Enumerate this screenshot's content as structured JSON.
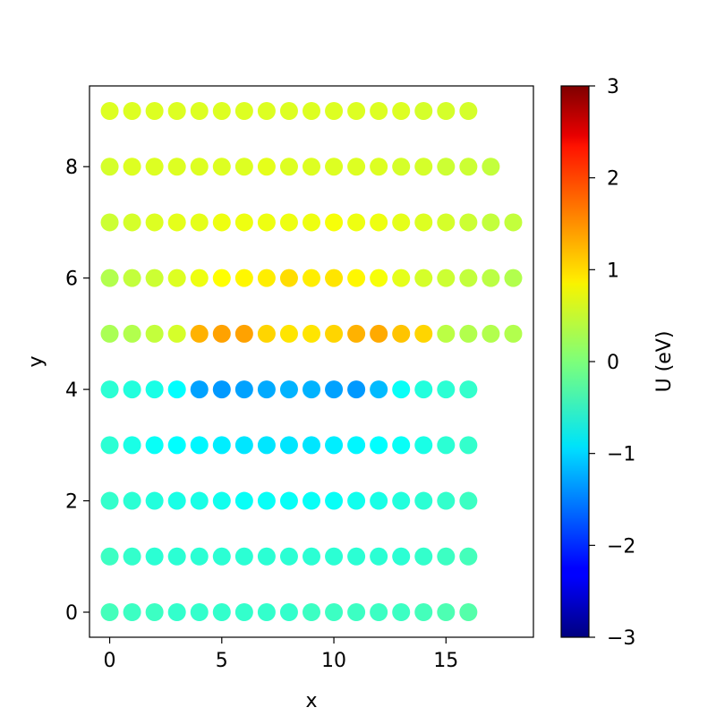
{
  "chart_data": {
    "type": "scatter",
    "title": "",
    "xlabel": "x",
    "ylabel": "y",
    "xlim": [
      -0.9,
      18.9
    ],
    "ylim": [
      -0.45,
      9.45
    ],
    "xticks": [
      0,
      5,
      10,
      15
    ],
    "yticks": [
      0,
      2,
      4,
      6,
      8
    ],
    "grid": false,
    "colorbar": {
      "label": "U (eV)",
      "colormap": "jet",
      "range": [
        -3,
        3
      ],
      "ticks": [
        3,
        2,
        1,
        0,
        -1,
        -2,
        -3
      ],
      "tick_labels": [
        "3",
        "2",
        "1",
        "0",
        "−1",
        "−2",
        "−3"
      ]
    },
    "rows": [
      {
        "y": 0,
        "x_start": 0,
        "values": [
          -0.35,
          -0.4,
          -0.4,
          -0.45,
          -0.45,
          -0.45,
          -0.45,
          -0.45,
          -0.45,
          -0.4,
          -0.4,
          -0.4,
          -0.4,
          -0.4,
          -0.35,
          -0.3,
          -0.25
        ]
      },
      {
        "y": 1,
        "x_start": 0,
        "values": [
          -0.4,
          -0.45,
          -0.5,
          -0.5,
          -0.5,
          -0.5,
          -0.5,
          -0.5,
          -0.5,
          -0.5,
          -0.5,
          -0.5,
          -0.5,
          -0.5,
          -0.45,
          -0.4,
          -0.35
        ]
      },
      {
        "y": 2,
        "x_start": 0,
        "values": [
          -0.45,
          -0.5,
          -0.55,
          -0.6,
          -0.6,
          -0.65,
          -0.7,
          -0.7,
          -0.7,
          -0.7,
          -0.7,
          -0.65,
          -0.6,
          -0.55,
          -0.5,
          -0.45,
          -0.4
        ]
      },
      {
        "y": 3,
        "x_start": 0,
        "values": [
          -0.5,
          -0.6,
          -0.7,
          -0.75,
          -0.8,
          -0.85,
          -0.9,
          -0.9,
          -0.9,
          -0.9,
          -0.85,
          -0.8,
          -0.75,
          -0.7,
          -0.6,
          -0.5,
          -0.45
        ]
      },
      {
        "y": 4,
        "x_start": 0,
        "values": [
          -0.5,
          -0.55,
          -0.6,
          -0.75,
          -1.3,
          -1.35,
          -1.3,
          -1.25,
          -1.2,
          -1.2,
          -1.3,
          -1.35,
          -1.15,
          -0.7,
          -0.55,
          -0.5,
          -0.45
        ]
      },
      {
        "y": 5,
        "x_start": 0,
        "values": [
          0.25,
          0.3,
          0.4,
          0.5,
          1.2,
          1.3,
          1.3,
          1.0,
          0.9,
          0.9,
          1.0,
          1.2,
          1.25,
          1.1,
          1.0,
          0.35,
          0.3,
          0.3,
          0.3
        ]
      },
      {
        "y": 6,
        "x_start": 0,
        "values": [
          0.3,
          0.4,
          0.45,
          0.55,
          0.65,
          0.75,
          0.8,
          0.85,
          0.95,
          0.85,
          0.9,
          0.8,
          0.7,
          0.6,
          0.5,
          0.45,
          0.4,
          0.35,
          0.3
        ]
      },
      {
        "y": 7,
        "x_start": 0,
        "values": [
          0.45,
          0.5,
          0.55,
          0.6,
          0.6,
          0.65,
          0.65,
          0.65,
          0.65,
          0.65,
          0.7,
          0.65,
          0.65,
          0.6,
          0.55,
          0.5,
          0.45,
          0.4,
          0.4
        ]
      },
      {
        "y": 8,
        "x_start": 0,
        "values": [
          0.5,
          0.55,
          0.55,
          0.55,
          0.55,
          0.55,
          0.55,
          0.6,
          0.55,
          0.55,
          0.55,
          0.55,
          0.55,
          0.5,
          0.5,
          0.45,
          0.45,
          0.4
        ]
      },
      {
        "y": 9,
        "x_start": 0,
        "values": [
          0.55,
          0.55,
          0.55,
          0.55,
          0.55,
          0.55,
          0.55,
          0.55,
          0.55,
          0.55,
          0.55,
          0.55,
          0.55,
          0.55,
          0.5,
          0.5,
          0.5
        ]
      }
    ]
  }
}
